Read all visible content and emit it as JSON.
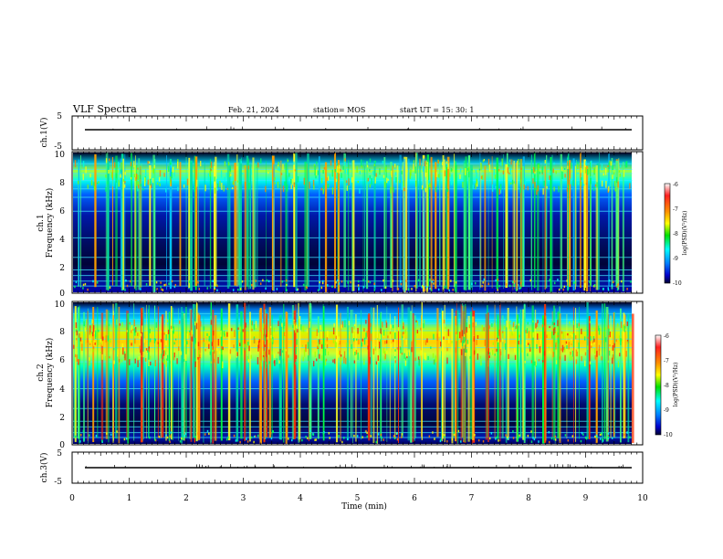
{
  "header": {
    "title": "VLF Spectra",
    "date": "Feb. 21, 2024",
    "station": "station= MOS",
    "start_ut": "start  UT =   15: 30: 1"
  },
  "chart_data": {
    "type": "heatmap",
    "title": "VLF Spectra",
    "xlabel": "Time  (min)",
    "xlim": [
      0,
      10
    ],
    "xticks": [
      "0",
      "1",
      "2",
      "3",
      "4",
      "5",
      "6",
      "7",
      "8",
      "9",
      "10"
    ],
    "data_extent_min": 9.83,
    "panels": [
      {
        "id": "ch1-voltage",
        "type": "line",
        "ylabel": "ch.1(V)",
        "ylim": [
          -5,
          5
        ],
        "yticks": [
          "5",
          "-5"
        ],
        "trace_level_v": 0
      },
      {
        "id": "ch1-spectrogram",
        "type": "heatmap",
        "ylabel_line1": "ch.1",
        "ylabel_line2": "Frequency  (kHz)",
        "ylim": [
          0,
          10
        ],
        "yticks": [
          "0",
          "2",
          "4",
          "6",
          "8",
          "10"
        ],
        "colorbar": {
          "label": "log(PSD)(V²/Hz)",
          "range": [
            -10,
            -6
          ],
          "ticks": [
            "-6",
            "-7",
            "-8",
            "-9",
            "-10"
          ]
        }
      },
      {
        "id": "ch2-spectrogram",
        "type": "heatmap",
        "ylabel_line1": "ch.2",
        "ylabel_line2": "Frequency  (kHz)",
        "ylim": [
          0,
          10
        ],
        "yticks": [
          "0",
          "2",
          "4",
          "6",
          "8",
          "10"
        ],
        "colorbar": {
          "label": "log(PSD)(V²/Hz)",
          "range": [
            -10,
            -6
          ],
          "ticks": [
            "-6",
            "-7",
            "-8",
            "-9",
            "-10"
          ]
        }
      },
      {
        "id": "ch3-voltage",
        "type": "line",
        "ylabel": "ch.3(V)",
        "ylim": [
          -5,
          5
        ],
        "yticks": [
          "5",
          "-5"
        ],
        "trace_level_v": 0
      }
    ]
  },
  "colors": {
    "background": "#ffffff",
    "axis": "#000000",
    "colormap": [
      "#ffffff",
      "#ff2020",
      "#ff9000",
      "#ffff00",
      "#00e000",
      "#00ffff",
      "#0080ff",
      "#0000cc",
      "#000030"
    ]
  }
}
